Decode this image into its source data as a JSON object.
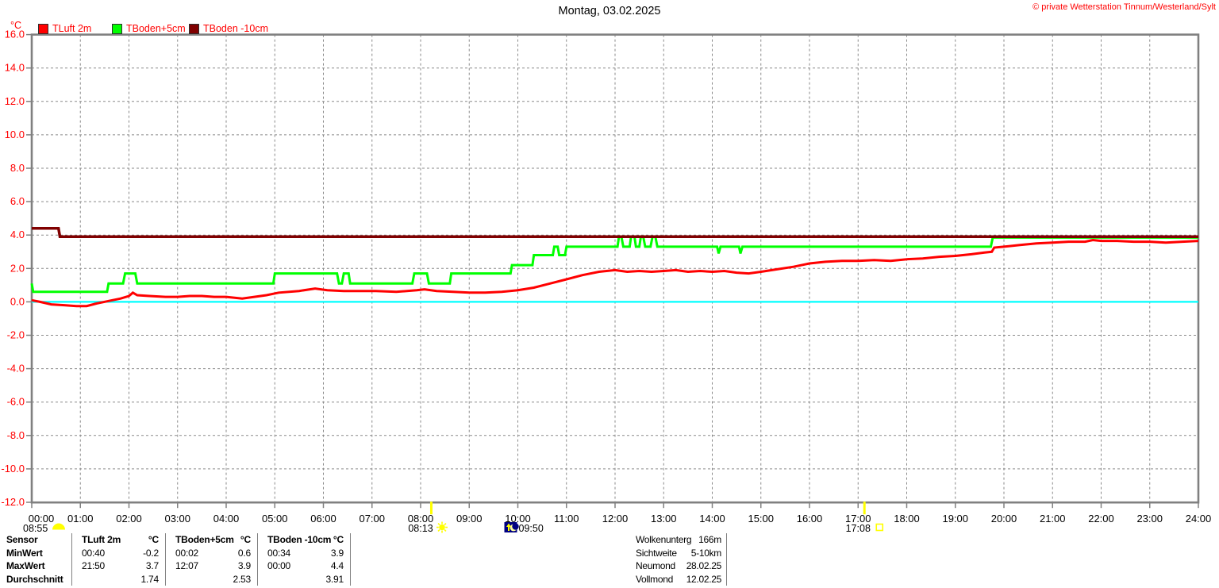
{
  "header": {
    "title": "Montag, 03.02.2025",
    "copyright": "© private Wetterstation Tinnum/Westerland/Sylt"
  },
  "legend": {
    "unit": "°C",
    "items": [
      {
        "label": "TLuft 2m",
        "color": "#ff0000"
      },
      {
        "label": "TBoden+5cm",
        "color": "#00ff00"
      },
      {
        "label": "TBoden -10cm",
        "color": "#800000"
      }
    ]
  },
  "chart_data": {
    "type": "line",
    "title": "Montag, 03.02.2025",
    "ylabel": "°C",
    "xlabel": "",
    "ylim": [
      -12.0,
      16.0
    ],
    "xlim_hours": [
      0,
      24
    ],
    "grid": true,
    "axis_color": "#808080",
    "grid_color": "#8a8a8a",
    "y_tick_color": "#ff0000",
    "x_tick_color": "#000000",
    "y_ticks": [
      "16.0",
      "14.0",
      "12.0",
      "10.0",
      "8.0",
      "6.0",
      "4.0",
      "2.0",
      "0.0",
      "-2.0",
      "-4.0",
      "-6.0",
      "-8.0",
      "-10.0",
      "-12.0"
    ],
    "x_ticks": [
      "00:00",
      "01:00",
      "02:00",
      "03:00",
      "04:00",
      "05:00",
      "06:00",
      "07:00",
      "08:00",
      "09:00",
      "10:00",
      "11:00",
      "12:00",
      "13:00",
      "14:00",
      "15:00",
      "16:00",
      "17:00",
      "18:00",
      "19:00",
      "20:00",
      "21:00",
      "22:00",
      "23:00",
      "24:00"
    ],
    "zero_line": {
      "value": 0.0,
      "color": "#00ffff"
    },
    "series": [
      {
        "name": "TLuft 2m",
        "color": "#ff0000",
        "stroke_width": 3,
        "x": [
          0,
          0.17,
          0.4,
          0.67,
          0.92,
          1.13,
          1.33,
          1.58,
          1.83,
          2.0,
          2.08,
          2.17,
          2.42,
          2.75,
          3.0,
          3.25,
          3.5,
          3.75,
          4.0,
          4.33,
          4.58,
          4.83,
          5.08,
          5.5,
          5.83,
          6.08,
          6.42,
          6.75,
          7.08,
          7.5,
          7.92,
          8.08,
          8.33,
          8.67,
          9.0,
          9.33,
          9.67,
          10.0,
          10.33,
          10.67,
          11.0,
          11.33,
          11.67,
          12.0,
          12.25,
          12.5,
          12.75,
          13.0,
          13.25,
          13.5,
          13.75,
          14.0,
          14.25,
          14.5,
          14.75,
          15.0,
          15.33,
          15.67,
          16.0,
          16.33,
          16.67,
          17.0,
          17.33,
          17.67,
          18.0,
          18.33,
          18.67,
          19.0,
          19.33,
          19.6,
          19.75,
          19.8,
          20.0,
          20.33,
          20.67,
          21.0,
          21.33,
          21.67,
          21.83,
          22.0,
          22.33,
          22.67,
          23.0,
          23.33,
          23.67,
          24.0
        ],
        "y": [
          0.1,
          0.0,
          -0.15,
          -0.2,
          -0.25,
          -0.25,
          -0.1,
          0.05,
          0.2,
          0.35,
          0.55,
          0.4,
          0.35,
          0.3,
          0.3,
          0.35,
          0.35,
          0.3,
          0.3,
          0.2,
          0.3,
          0.4,
          0.55,
          0.65,
          0.8,
          0.7,
          0.65,
          0.65,
          0.65,
          0.6,
          0.7,
          0.75,
          0.65,
          0.6,
          0.55,
          0.55,
          0.6,
          0.7,
          0.85,
          1.1,
          1.35,
          1.6,
          1.8,
          1.9,
          1.8,
          1.85,
          1.8,
          1.85,
          1.9,
          1.8,
          1.85,
          1.8,
          1.85,
          1.75,
          1.7,
          1.8,
          1.95,
          2.1,
          2.3,
          2.4,
          2.45,
          2.45,
          2.5,
          2.45,
          2.55,
          2.6,
          2.7,
          2.75,
          2.85,
          2.95,
          3.0,
          3.25,
          3.3,
          3.4,
          3.5,
          3.55,
          3.6,
          3.6,
          3.7,
          3.65,
          3.65,
          3.6,
          3.6,
          3.55,
          3.6,
          3.65
        ]
      },
      {
        "name": "TBoden+5cm",
        "color": "#00ff00",
        "stroke_width": 3,
        "x": [
          0,
          0.03,
          1.55,
          1.58,
          1.88,
          1.92,
          2.13,
          2.17,
          4.97,
          5.0,
          6.28,
          6.32,
          6.38,
          6.42,
          6.52,
          6.55,
          7.83,
          7.87,
          8.13,
          8.17,
          8.6,
          8.63,
          9.85,
          9.88,
          10.3,
          10.33,
          10.72,
          10.75,
          10.82,
          10.85,
          10.97,
          11.0,
          12.05,
          12.08,
          12.13,
          12.17,
          12.3,
          12.33,
          12.4,
          12.43,
          12.5,
          12.53,
          12.58,
          12.62,
          12.73,
          12.77,
          12.83,
          12.87,
          14.1,
          14.13,
          14.17,
          14.55,
          14.58,
          14.62,
          19.73,
          19.77,
          24
        ],
        "y": [
          1.1,
          0.6,
          0.6,
          1.1,
          1.1,
          1.7,
          1.7,
          1.1,
          1.1,
          1.7,
          1.7,
          1.1,
          1.1,
          1.7,
          1.7,
          1.1,
          1.1,
          1.7,
          1.7,
          1.1,
          1.1,
          1.7,
          1.7,
          2.2,
          2.2,
          2.8,
          2.8,
          3.3,
          3.3,
          2.8,
          2.8,
          3.3,
          3.3,
          3.9,
          3.9,
          3.3,
          3.3,
          3.9,
          3.9,
          3.3,
          3.3,
          3.9,
          3.9,
          3.3,
          3.3,
          3.9,
          3.9,
          3.3,
          3.3,
          2.9,
          3.3,
          3.3,
          2.9,
          3.3,
          3.3,
          3.85,
          3.85
        ]
      },
      {
        "name": "TBoden -10cm",
        "color": "#800000",
        "stroke_width": 3.5,
        "x": [
          0,
          0.55,
          0.58,
          24
        ],
        "y": [
          4.4,
          4.4,
          3.9,
          3.9
        ]
      }
    ],
    "sun_marks_on_axis": [
      {
        "hour": 8.22,
        "color": "#ffff00"
      },
      {
        "hour": 17.13,
        "color": "#ffff00"
      }
    ],
    "annotations": [
      {
        "text": "08:55",
        "icon": "celestial-dome-icon",
        "hour": 0,
        "align": "left",
        "icon_position": "after"
      },
      {
        "text": "08:13",
        "icon": "sun-icon",
        "hour": 8,
        "align": "center",
        "icon_position": "after"
      },
      {
        "text": "09:50",
        "icon": "moonrise-icon",
        "hour": 10,
        "align": "center",
        "icon_position": "before"
      },
      {
        "text": "17:08",
        "icon": "sunset-square-icon",
        "hour": 17,
        "align": "center",
        "icon_position": "after"
      }
    ]
  },
  "stats_table": {
    "row_labels": [
      "Sensor",
      "MinWert",
      "MaxWert",
      "Durchschnitt"
    ],
    "columns": [
      {
        "sensor": "TLuft 2m",
        "unit": "°C",
        "min_time": "00:40",
        "min_value": "-0.2",
        "max_time": "21:50",
        "max_value": "3.7",
        "avg": "1.74"
      },
      {
        "sensor": "TBoden+5cm",
        "unit": "°C",
        "min_time": "00:02",
        "min_value": "0.6",
        "max_time": "12:07",
        "max_value": "3.9",
        "avg": "2.53"
      },
      {
        "sensor": "TBoden -10cm",
        "unit": "°C",
        "min_time": "00:34",
        "min_value": "3.9",
        "max_time": "00:00",
        "max_value": "4.4",
        "avg": "3.91"
      }
    ]
  },
  "info_panel": {
    "rows": [
      {
        "label": "Wolkenunterg",
        "value": "166m"
      },
      {
        "label": "Sichtweite",
        "value": "5-10km"
      },
      {
        "label": "Neumond",
        "value": "28.02.25"
      },
      {
        "label": "Vollmond",
        "value": "12.02.25"
      }
    ]
  }
}
